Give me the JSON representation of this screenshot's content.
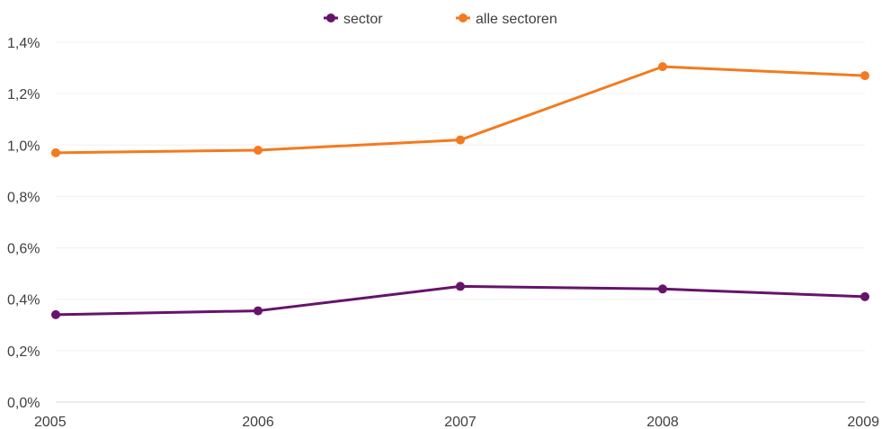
{
  "chart_data": {
    "type": "line",
    "x": [
      "2005",
      "2006",
      "2007",
      "2008",
      "2009"
    ],
    "series": [
      {
        "name": "sector",
        "color": "#66136b",
        "values": [
          0.0034,
          0.00355,
          0.0045,
          0.0044,
          0.0041
        ]
      },
      {
        "name": "alle sectoren",
        "color": "#f47a1f",
        "values": [
          0.0097,
          0.0098,
          0.0102,
          0.01305,
          0.0127
        ]
      }
    ],
    "y_ticks": [
      0,
      0.002,
      0.004,
      0.006,
      0.008,
      0.01,
      0.012,
      0.014
    ],
    "y_tick_labels": [
      "0,0%",
      "0,2%",
      "0,4%",
      "0,6%",
      "0,8%",
      "1,0%",
      "1,2%",
      "1,4%"
    ],
    "ylim": [
      0,
      0.014
    ],
    "legend_position": "top-center",
    "grid": true
  }
}
